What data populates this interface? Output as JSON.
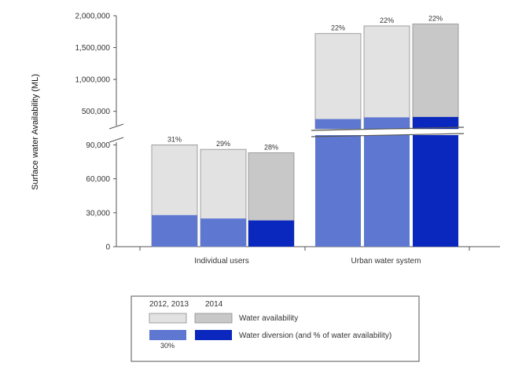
{
  "chart_data": {
    "type": "bar",
    "stacked": true,
    "broken_y_axis": true,
    "ylabel": "Surface water Availability (ML)",
    "categories": [
      "Individual users",
      "Urban water system"
    ],
    "period_labels": [
      "2012, 2013",
      "2014"
    ],
    "series": [
      {
        "name": "Water availability",
        "groups": [
          {
            "category": "Individual users",
            "years": [
              "2012",
              "2013",
              "2014"
            ],
            "values": [
              90000,
              86000,
              83000
            ]
          },
          {
            "category": "Urban water system",
            "years": [
              "2012",
              "2013",
              "2014"
            ],
            "values": [
              1720000,
              1840000,
              1870000
            ]
          }
        ]
      },
      {
        "name": "Water diversion (and % of water availability)",
        "groups": [
          {
            "category": "Individual users",
            "years": [
              "2012",
              "2013",
              "2014"
            ],
            "values": [
              27900,
              24900,
              23200
            ],
            "percent_labels": [
              "31%",
              "29%",
              "28%"
            ]
          },
          {
            "category": "Urban water system",
            "years": [
              "2012",
              "2013",
              "2014"
            ],
            "values": [
              378000,
              405000,
              411000
            ],
            "percent_labels": [
              "22%",
              "22%",
              "22%"
            ]
          }
        ]
      }
    ],
    "lower_axis": {
      "ylim": [
        0,
        100000
      ],
      "ticks": [
        0,
        30000,
        60000,
        90000
      ],
      "tick_labels": [
        "0",
        "30,000",
        "60,000",
        "90,000"
      ]
    },
    "upper_axis": {
      "ylim": [
        200000,
        2000000
      ],
      "ticks": [
        500000,
        1000000,
        1500000,
        2000000
      ],
      "tick_labels": [
        "500,000",
        "1,000,000",
        "1,500,000",
        "2,000,000"
      ]
    },
    "legend": {
      "placement": "bottom",
      "header_left": "2012, 2013",
      "header_right": "2014",
      "availability_label": "Water availability",
      "diversion_label": "Water diversion (and % of water availability)",
      "example_percent": "30%"
    },
    "colors": {
      "availability_2012_2013": "#e2e2e2",
      "availability_2014": "#c8c8c8",
      "diversion_2012_2013": "#5e78d2",
      "diversion_2014": "#0a28be"
    }
  }
}
